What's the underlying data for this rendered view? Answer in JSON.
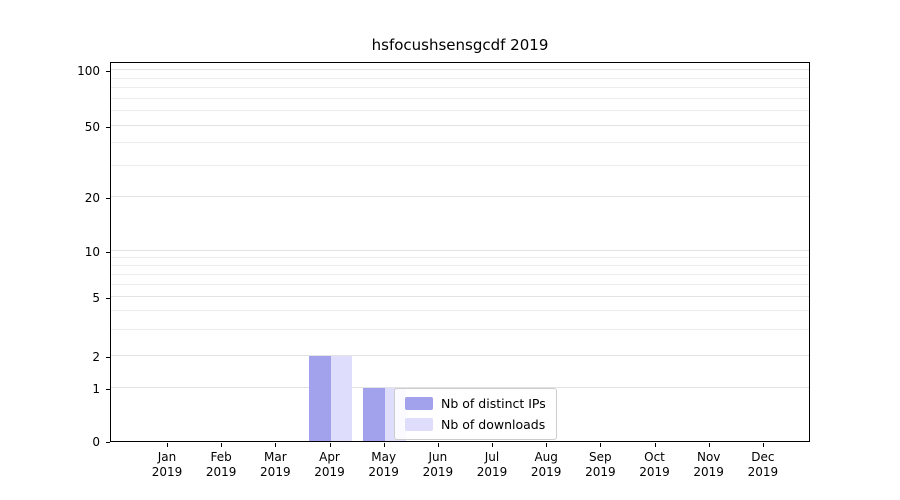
{
  "chart_data": {
    "type": "bar",
    "title": "hsfocushsensgcdf 2019",
    "categories": [
      "Jan",
      "Feb",
      "Mar",
      "Apr",
      "May",
      "Jun",
      "Jul",
      "Aug",
      "Sep",
      "Oct",
      "Nov",
      "Dec"
    ],
    "year_label": "2019",
    "series": [
      {
        "name": "Nb of distinct IPs",
        "color": "#a2a2ec",
        "values": [
          0,
          0,
          0,
          2,
          1,
          0,
          0,
          0,
          0,
          0,
          0,
          0
        ]
      },
      {
        "name": "Nb of downloads",
        "color": "#dedefc",
        "values": [
          0,
          0,
          0,
          2,
          1,
          0,
          0,
          0,
          0,
          0,
          0,
          0
        ]
      }
    ],
    "yticks": [
      0,
      1,
      2,
      5,
      10,
      20,
      50,
      100
    ],
    "ylim": [
      0,
      100
    ],
    "scale": "symlog",
    "grid": "horizontal-minor-log",
    "legend_position": "inside-bottom-center"
  }
}
